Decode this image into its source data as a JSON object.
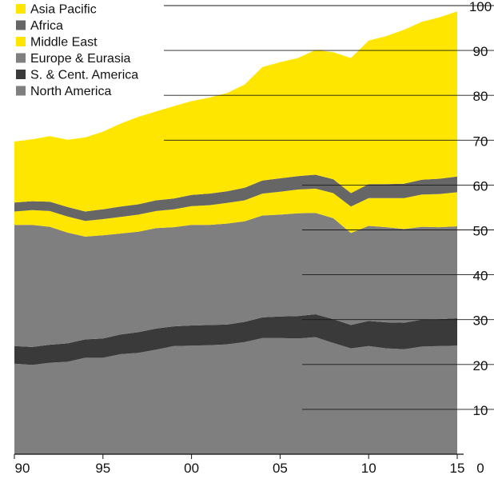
{
  "chart_data": {
    "type": "area",
    "stacked": true,
    "title": "",
    "xlabel": "",
    "ylabel": "",
    "x": [
      1990,
      1991,
      1992,
      1993,
      1994,
      1995,
      1996,
      1997,
      1998,
      1999,
      2000,
      2001,
      2002,
      2003,
      2004,
      2005,
      2006,
      2007,
      2008,
      2009,
      2010,
      2011,
      2012,
      2013,
      2014,
      2015
    ],
    "x_ticks": [
      1990,
      1995,
      2000,
      2005,
      2010,
      2015
    ],
    "x_tick_labels": [
      "90",
      "95",
      "00",
      "05",
      "10",
      "15"
    ],
    "ylim": [
      0,
      100
    ],
    "y_ticks": [
      0,
      10,
      20,
      30,
      40,
      50,
      60,
      70,
      80,
      90,
      100
    ],
    "y_tick_labels": [
      "0",
      "10",
      "20",
      "30",
      "40",
      "50",
      "60",
      "70",
      "80",
      "90",
      "100"
    ],
    "grid": true,
    "legend_position": "top-left",
    "series": [
      {
        "name": "North America",
        "color": "#7f7f7f",
        "values": [
          20.2,
          19.9,
          20.4,
          20.6,
          21.5,
          21.5,
          22.3,
          22.6,
          23.3,
          24.1,
          24.2,
          24.3,
          24.5,
          25.0,
          25.9,
          25.9,
          25.8,
          26.1,
          24.8,
          23.6,
          24.1,
          23.6,
          23.4,
          24.0,
          24.1,
          24.2
        ]
      },
      {
        "name": "S. & Cent. America",
        "color": "#3a3a3a",
        "values": [
          3.9,
          4.0,
          4.0,
          4.1,
          4.1,
          4.3,
          4.4,
          4.6,
          4.7,
          4.4,
          4.5,
          4.5,
          4.4,
          4.5,
          4.6,
          4.8,
          5.0,
          5.1,
          5.3,
          5.2,
          5.6,
          5.8,
          5.9,
          6.0,
          6.0,
          6.1
        ]
      },
      {
        "name": "Europe & Eurasia",
        "color": "#7f7f7f",
        "values": [
          27.0,
          27.2,
          26.3,
          24.7,
          22.9,
          23.0,
          22.5,
          22.4,
          22.4,
          22.1,
          22.4,
          22.3,
          22.5,
          22.4,
          22.7,
          22.7,
          22.9,
          22.6,
          22.5,
          20.5,
          21.2,
          21.2,
          20.9,
          20.7,
          20.5,
          20.5
        ]
      },
      {
        "name": "Middle East",
        "color": "#ffe600",
        "values": [
          3.0,
          3.3,
          3.5,
          3.6,
          3.5,
          3.6,
          3.7,
          3.8,
          3.8,
          4.0,
          4.2,
          4.4,
          4.6,
          4.7,
          4.9,
          5.1,
          5.3,
          5.4,
          5.6,
          5.9,
          6.2,
          6.5,
          6.9,
          7.2,
          7.4,
          7.6
        ]
      },
      {
        "name": "Africa",
        "color": "#666666",
        "values": [
          2.0,
          2.0,
          2.1,
          2.1,
          2.1,
          2.2,
          2.3,
          2.3,
          2.4,
          2.4,
          2.5,
          2.6,
          2.6,
          2.8,
          2.9,
          3.0,
          3.0,
          3.1,
          3.1,
          3.0,
          3.1,
          3.1,
          3.2,
          3.3,
          3.4,
          3.5
        ]
      },
      {
        "name": "Asia Pacific",
        "color": "#ffe600",
        "values": [
          13.6,
          13.8,
          14.6,
          15.0,
          16.5,
          17.3,
          18.5,
          19.5,
          19.8,
          20.6,
          20.9,
          21.4,
          21.9,
          23.0,
          25.3,
          25.9,
          26.3,
          27.8,
          28.3,
          30.1,
          32.0,
          33.0,
          34.3,
          35.2,
          36.0,
          36.8
        ]
      }
    ]
  }
}
